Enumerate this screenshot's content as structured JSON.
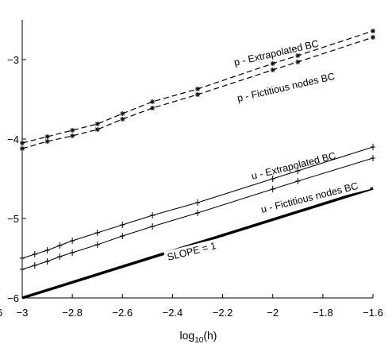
{
  "chart_data": {
    "type": "line",
    "title": "",
    "xlabel": "log",
    "xlabel_sub": "10",
    "xlabel_suffix": "(h)",
    "ylabel": "",
    "xlim": [
      -3,
      -1.6
    ],
    "ylim": [
      -6,
      -2.5
    ],
    "xticks": [
      -3,
      -2.8,
      -2.6,
      -2.4,
      -2.2,
      -2,
      -1.8,
      -1.6
    ],
    "xtick_labels": [
      "−3",
      "−2.8",
      "−2.6",
      "−2.4",
      "−2.2",
      "−2",
      "−1.8",
      "−1.6"
    ],
    "yticks": [
      -6,
      -5,
      -4,
      -3
    ],
    "ytick_labels": [
      "−6",
      "−5",
      "−4",
      "−3"
    ],
    "left_edge_fragment": "6",
    "grid": false,
    "series": [
      {
        "name": "p - Extrapolated BC",
        "style": "dashed",
        "marker": "*",
        "x": [
          -3,
          -2.9,
          -2.8,
          -2.7,
          -2.6,
          -2.48,
          -2.3,
          -2,
          -1.9,
          -1.6
        ],
        "y": [
          -4.05,
          -3.97,
          -3.89,
          -3.81,
          -3.68,
          -3.53,
          -3.37,
          -3.05,
          -2.95,
          -2.64
        ]
      },
      {
        "name": "p - Fictitious nodes BC",
        "style": "dashed",
        "marker": "*",
        "x": [
          -3,
          -2.9,
          -2.8,
          -2.7,
          -2.6,
          -2.48,
          -2.3,
          -2,
          -1.9,
          -1.6
        ],
        "y": [
          -4.12,
          -4.03,
          -3.96,
          -3.88,
          -3.75,
          -3.61,
          -3.44,
          -3.13,
          -3.03,
          -2.72
        ]
      },
      {
        "name": "u - Extrapolated BC",
        "style": "solid",
        "marker": "+",
        "x": [
          -3,
          -2.95,
          -2.9,
          -2.85,
          -2.8,
          -2.7,
          -2.6,
          -2.48,
          -2.3,
          -2,
          -1.9,
          -1.6
        ],
        "y": [
          -5.5,
          -5.45,
          -5.4,
          -5.34,
          -5.28,
          -5.18,
          -5.08,
          -4.96,
          -4.8,
          -4.5,
          -4.4,
          -4.1
        ]
      },
      {
        "name": "u - Fictitious nodes BC",
        "style": "solid",
        "marker": "+",
        "x": [
          -3,
          -2.95,
          -2.9,
          -2.85,
          -2.8,
          -2.7,
          -2.6,
          -2.48,
          -2.3,
          -2,
          -1.9,
          -1.6
        ],
        "y": [
          -5.64,
          -5.59,
          -5.54,
          -5.48,
          -5.43,
          -5.33,
          -5.22,
          -5.1,
          -4.93,
          -4.63,
          -4.53,
          -4.24
        ]
      },
      {
        "name": "SLOPE = 1",
        "style": "thick",
        "marker": "",
        "x": [
          -3,
          -1.6
        ],
        "y": [
          -6,
          -4.62
        ]
      }
    ],
    "annotations": {
      "p_extrap": "p - Extrapolated BC",
      "p_fict": "p - Fictitious nodes BC",
      "u_extrap": "u - Extrapolated BC",
      "u_fict": "u - Fictitious nodes BC",
      "slope": "SLOPE = 1"
    }
  }
}
